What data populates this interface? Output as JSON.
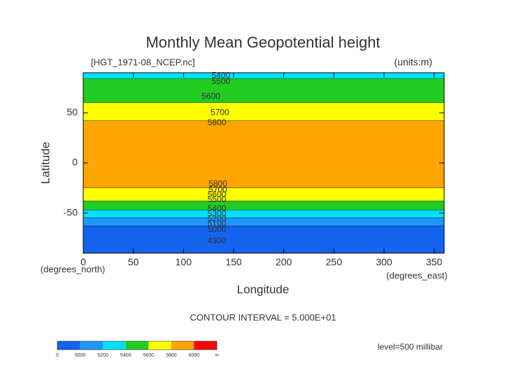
{
  "chart_data": {
    "type": "contour",
    "title": "Monthly Mean Geopotential height",
    "subtitle": "[HGT_1971-08_NCEP.nc]",
    "units": "(units:m)",
    "x_label": "Longitude",
    "y_label": "Latitude",
    "x_unit_label": "(degrees_east)",
    "y_unit_label": "(degrees_north)",
    "contour_interval": "CONTOUR INTERVAL = 5.000E+01",
    "level": "level=500 millibar",
    "xlim": [
      0,
      360
    ],
    "ylim": [
      -90,
      90
    ],
    "xticks": [
      0,
      50,
      100,
      150,
      200,
      250,
      300,
      350
    ],
    "yticks": [
      -50,
      0,
      50
    ],
    "bands": [
      {
        "color": "#00e0ff",
        "from": 90,
        "to": 84
      },
      {
        "color": "#22cc22",
        "from": 84,
        "to": 60
      },
      {
        "color": "#ffff00",
        "from": 60,
        "to": 42
      },
      {
        "color": "#ffa500",
        "from": 42,
        "to": -25
      },
      {
        "color": "#ffff00",
        "from": -25,
        "to": -38
      },
      {
        "color": "#22cc22",
        "from": -38,
        "to": -47
      },
      {
        "color": "#00e0ff",
        "from": -47,
        "to": -55
      },
      {
        "color": "#1e96ff",
        "from": -55,
        "to": -63
      },
      {
        "color": "#1464f0",
        "from": -63,
        "to": -90
      }
    ],
    "contour_labels": [
      {
        "value": 5400,
        "lon": 128,
        "lat": 87
      },
      {
        "value": 5500,
        "lon": 128,
        "lat": 81
      },
      {
        "value": 5600,
        "lon": 118,
        "lat": 66
      },
      {
        "value": 5700,
        "lon": 127,
        "lat": 50
      },
      {
        "value": 5800,
        "lon": 124,
        "lat": 40
      },
      {
        "value": 5800,
        "lon": 125,
        "lat": -21
      },
      {
        "value": 5700,
        "lon": 125,
        "lat": -27
      },
      {
        "value": 5600,
        "lon": 124,
        "lat": -32
      },
      {
        "value": 5500,
        "lon": 124,
        "lat": -37
      },
      {
        "value": 5400,
        "lon": 124,
        "lat": -46
      },
      {
        "value": 5300,
        "lon": 124,
        "lat": -51
      },
      {
        "value": 5200,
        "lon": 124,
        "lat": -56
      },
      {
        "value": 5100,
        "lon": 124,
        "lat": -61
      },
      {
        "value": 5000,
        "lon": 124,
        "lat": -67
      },
      {
        "value": 4900,
        "lon": 124,
        "lat": -78
      }
    ],
    "colorbar": {
      "levels": [
        0,
        5000,
        5200,
        5400,
        5600,
        5800,
        6000
      ],
      "upper_label": "∞",
      "colors": [
        "#1464f0",
        "#1e96ff",
        "#00e0ff",
        "#22cc22",
        "#ffff00",
        "#ffa500",
        "#ff0000"
      ]
    }
  }
}
